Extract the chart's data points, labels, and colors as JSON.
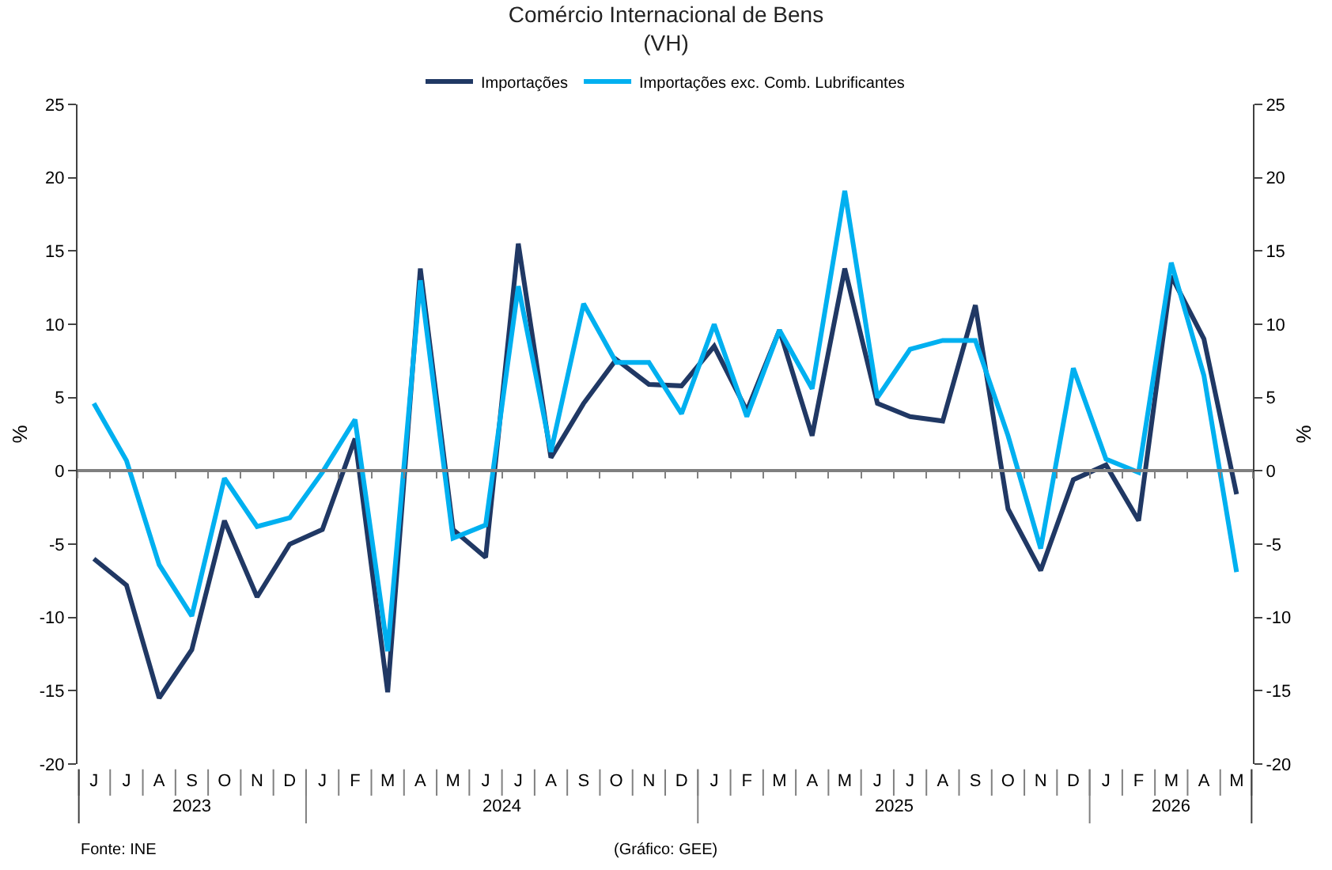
{
  "chart_data": {
    "type": "line",
    "title": "Comércio Internacional de Bens",
    "subtitle": "(VH)",
    "ylabel": "%",
    "y2label": "%",
    "categories": [
      "J",
      "J",
      "A",
      "S",
      "O",
      "N",
      "D",
      "J",
      "F",
      "M",
      "A",
      "M",
      "J",
      "J",
      "A",
      "S",
      "O",
      "N",
      "D",
      "J",
      "F",
      "M",
      "A",
      "M",
      "J",
      "J",
      "A",
      "S",
      "O",
      "N",
      "D",
      "J",
      "F",
      "M",
      "A",
      "M"
    ],
    "series": [
      {
        "name": "Importações",
        "color": "#203864",
        "values": [
          -6,
          -7.8,
          -15.5,
          -12.2,
          -3.4,
          -8.6,
          -5,
          -4,
          2.2,
          -15.1,
          13.8,
          -4,
          -5.9,
          15.5,
          0.9,
          4.6,
          7.6,
          5.9,
          5.8,
          8.5,
          4.1,
          9.6,
          2.4,
          13.8,
          4.6,
          3.7,
          3.4,
          11.3,
          -2.6,
          -6.8,
          -0.6,
          0.4,
          -3.4,
          13.3,
          9,
          -1.6
        ]
      },
      {
        "name": "Importações exc. Comb. Lubrificantes",
        "color": "#00b0f0",
        "values": [
          4.6,
          0.7,
          -6.4,
          -9.9,
          -0.5,
          -3.8,
          -3.2,
          -0.1,
          3.5,
          -12.3,
          13,
          -4.6,
          -3.7,
          12.6,
          1.3,
          11.4,
          7.4,
          7.4,
          3.9,
          10,
          3.7,
          9.6,
          5.6,
          19.1,
          5,
          8.3,
          8.9,
          8.9,
          2.4,
          -5.3,
          7,
          0.8,
          -0.1,
          14.2,
          6.5,
          -6.9
        ]
      }
    ],
    "ylim": [
      -20,
      25
    ],
    "yticks": [
      -20,
      -15,
      -10,
      -5,
      0,
      5,
      10,
      15,
      20,
      25
    ],
    "y2lim": [
      -20,
      25
    ],
    "y2ticks": [
      -20,
      -15,
      -10,
      -5,
      0,
      5,
      10,
      15,
      20,
      25
    ],
    "ref_lines": [
      {
        "axis": "y",
        "value": 0,
        "color": "#808080"
      }
    ],
    "grid": false,
    "legend": "top",
    "marker": "none",
    "line_style": "solid",
    "annotations": [
      "2023",
      "2024",
      "2025",
      "2026",
      "Fonte: INE",
      "(Gráfico: GEE)"
    ]
  }
}
